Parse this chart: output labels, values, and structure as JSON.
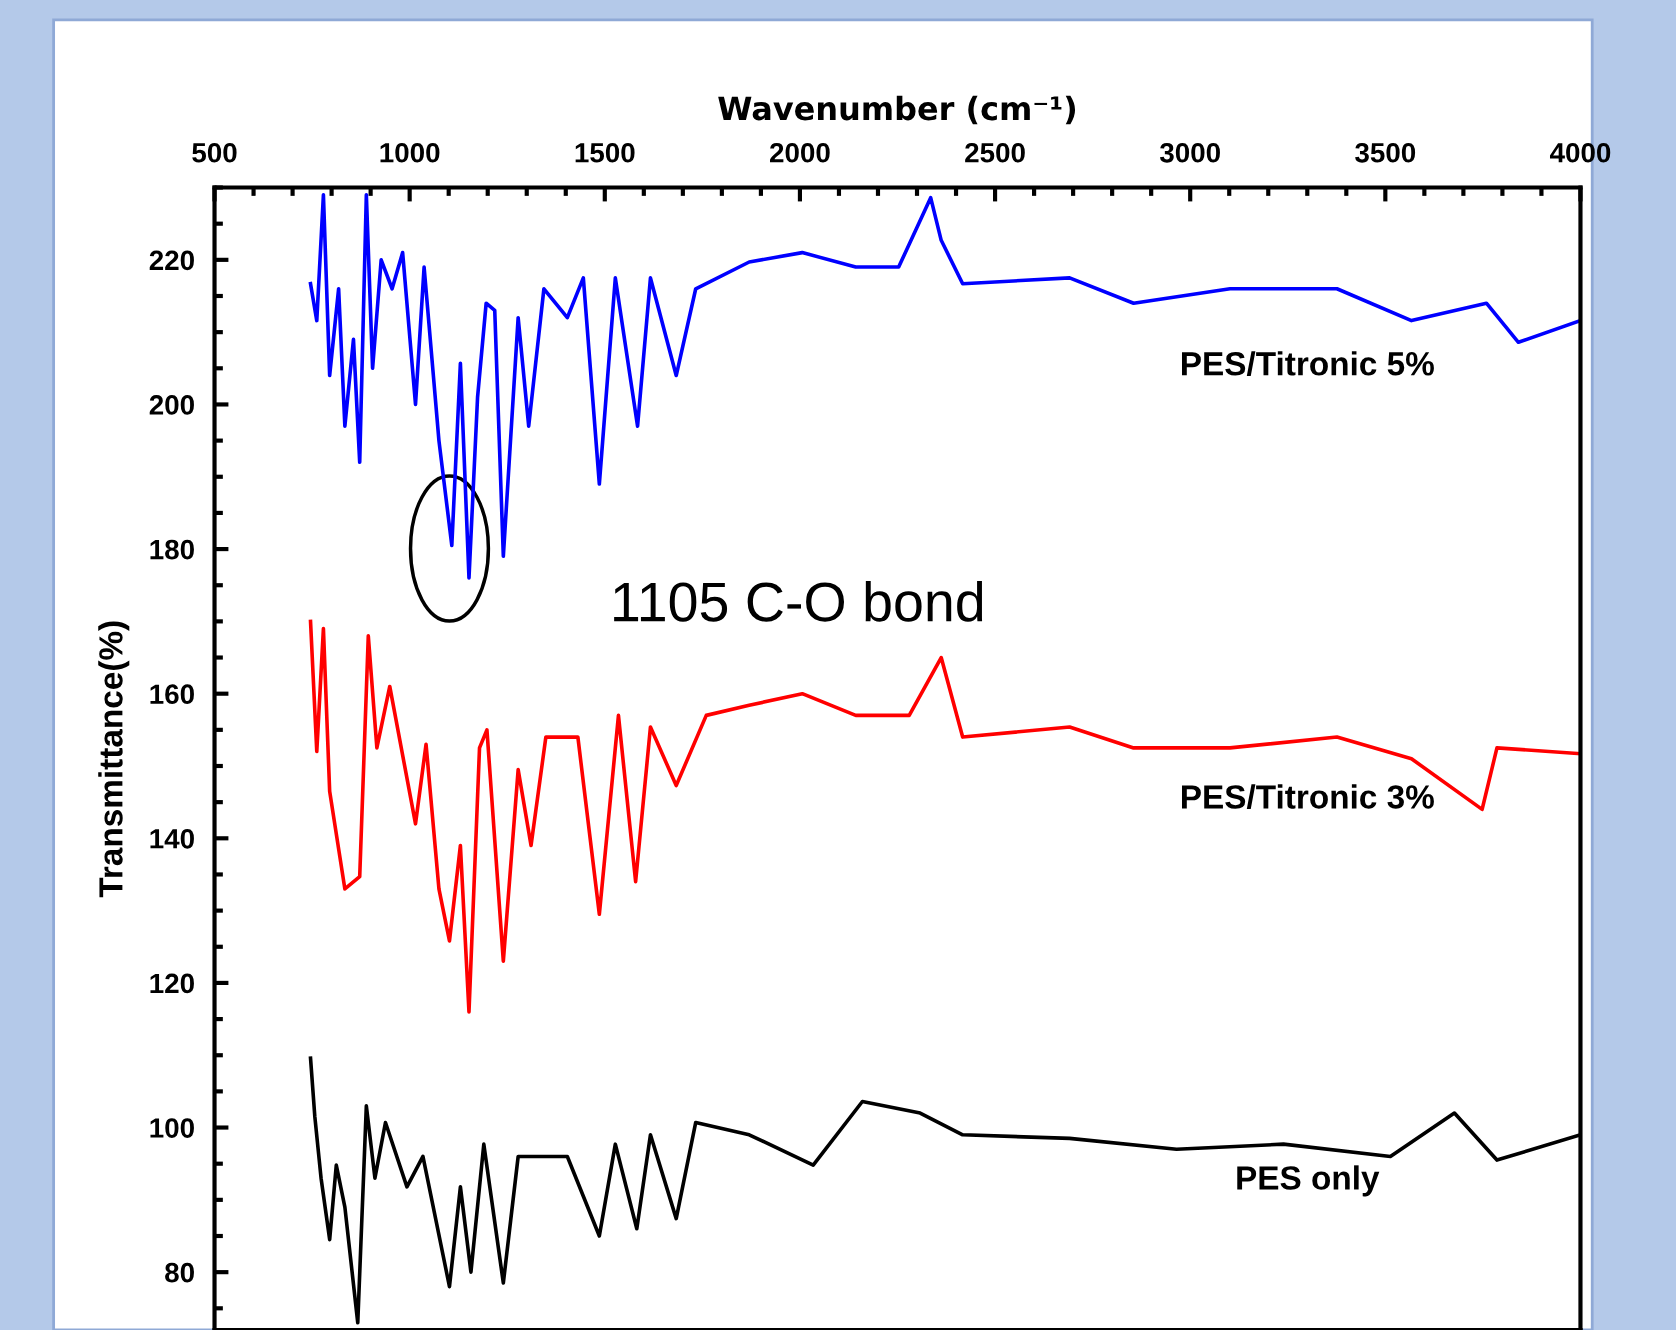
{
  "chart_data": {
    "type": "line",
    "xlabel": "Wavenumber (cm⁻¹)",
    "ylabel": "Transmittance(%)",
    "xlim": [
      500,
      4000
    ],
    "xticks": [
      500,
      1000,
      1500,
      2000,
      2500,
      3000,
      3500,
      4000
    ],
    "ylim": [
      72,
      230
    ],
    "yticks": [
      80,
      100,
      120,
      140,
      160,
      180,
      200,
      220
    ],
    "grid": false,
    "legend": false,
    "annotations": [
      "1105 C-O bond"
    ],
    "series": [
      {
        "name": "PES/Titronic 5%",
        "color": "#0000ff",
        "x": [
          746,
          762,
          779,
          795,
          818,
          834,
          856,
          872,
          889,
          905,
          927,
          955,
          982,
          1015,
          1037,
          1075,
          1108,
          1130,
          1152,
          1174,
          1196,
          1218,
          1240,
          1278,
          1305,
          1344,
          1404,
          1445,
          1486,
          1527,
          1584,
          1617,
          1683,
          1733,
          1870,
          2006,
          2143,
          2253,
          2335,
          2362,
          2417,
          2691,
          2855,
          3102,
          3376,
          3567,
          3759,
          3841,
          4000
        ],
        "values": [
          216.7,
          211.6,
          229,
          204,
          216,
          197,
          209,
          192,
          229,
          205,
          220,
          216,
          221,
          200,
          219,
          195,
          180.5,
          205.7,
          176,
          201,
          214,
          213,
          179,
          212,
          197,
          216,
          212,
          217.5,
          189,
          217.5,
          197,
          217.5,
          204,
          216,
          219.7,
          221,
          219,
          219,
          228.6,
          222.7,
          216.7,
          217.5,
          214,
          216,
          216,
          211.6,
          214,
          208.6,
          211.6
        ]
      },
      {
        "name": "PES/Titronic 3%",
        "color": "#ff0000",
        "x": [
          746,
          762,
          779,
          795,
          834,
          872,
          894,
          916,
          949,
          1015,
          1042,
          1075,
          1102,
          1130,
          1152,
          1179,
          1198,
          1240,
          1278,
          1311,
          1349,
          1431,
          1486,
          1535,
          1579,
          1617,
          1683,
          1760,
          1870,
          2006,
          2143,
          2280,
          2362,
          2417,
          2691,
          2855,
          3102,
          3376,
          3567,
          3748,
          3786,
          4000
        ],
        "values": [
          170,
          152,
          169,
          146.5,
          133,
          134.7,
          168,
          152.5,
          161,
          142,
          153,
          133,
          125.8,
          139,
          116,
          152.5,
          155,
          123,
          149.5,
          139,
          154,
          154,
          129.5,
          157,
          134,
          155.4,
          147.3,
          157,
          158.4,
          160,
          157,
          157,
          165,
          154,
          155.4,
          152.5,
          152.5,
          154,
          151,
          144,
          152.5,
          151.7
        ]
      },
      {
        "name": "PES only",
        "color": "#000000",
        "x": [
          746,
          757,
          773,
          795,
          812,
          834,
          867,
          889,
          911,
          938,
          993,
          1034,
          1102,
          1130,
          1157,
          1190,
          1240,
          1278,
          1349,
          1404,
          1486,
          1527,
          1582,
          1617,
          1683,
          1733,
          1870,
          2034,
          2160,
          2308,
          2417,
          2691,
          2965,
          3239,
          3513,
          3677,
          3786,
          4000
        ],
        "values": [
          109.6,
          101.5,
          93,
          84.5,
          94.8,
          89,
          73,
          103,
          93,
          100.7,
          91.8,
          96,
          78,
          91.8,
          80,
          97.7,
          78.5,
          96,
          96,
          96,
          85,
          97.7,
          86,
          99,
          87.4,
          100.7,
          99,
          94.8,
          103.6,
          102,
          99,
          98.5,
          97,
          97.7,
          96,
          102,
          95.5,
          99
        ]
      }
    ]
  }
}
